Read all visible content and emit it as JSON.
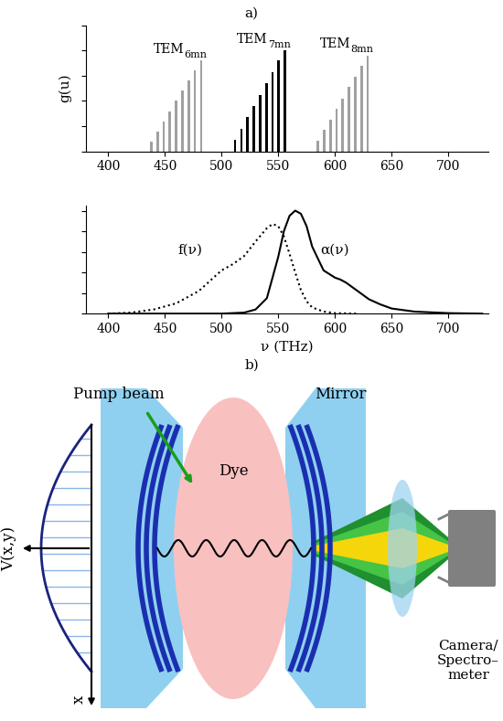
{
  "panels": [
    "a)",
    "b)"
  ],
  "chart_data": [
    {
      "type": "bar",
      "y_label": "g(u)",
      "xlim": [
        380,
        735
      ],
      "xticks": [
        400,
        450,
        500,
        550,
        600,
        650,
        700
      ],
      "ylim": [
        0,
        1.0
      ],
      "yticks": [
        0,
        0.2,
        0.4,
        0.6,
        0.8,
        1.0
      ],
      "tick_labels": "x",
      "series": [
        {
          "annotation": {
            "text": "TEM",
            "subscript": "6mn"
          },
          "color": "#a0a0a0",
          "x": [
            438,
            443.5,
            449,
            454.5,
            460,
            465.5,
            471,
            476.5,
            482
          ],
          "values": [
            0.08,
            0.16,
            0.24,
            0.32,
            0.4,
            0.48,
            0.56,
            0.64,
            0.72
          ]
        },
        {
          "annotation": {
            "text": "TEM",
            "subscript": "7mn"
          },
          "color": "#000000",
          "x": [
            512,
            517.5,
            523,
            528.5,
            534,
            539.5,
            545,
            550.5,
            556
          ],
          "values": [
            0.09,
            0.18,
            0.27,
            0.36,
            0.45,
            0.54,
            0.63,
            0.72,
            0.8
          ]
        },
        {
          "annotation": {
            "text": "TEM",
            "subscript": "8mn"
          },
          "color": "#a0a0a0",
          "x": [
            585,
            590.5,
            596,
            601.5,
            607,
            612.5,
            618,
            623.5,
            629
          ],
          "values": [
            0.085,
            0.17,
            0.25,
            0.34,
            0.42,
            0.51,
            0.59,
            0.68,
            0.76
          ]
        }
      ]
    },
    {
      "type": "line",
      "x_label": "ν (THz)",
      "xlim": [
        380,
        735
      ],
      "xticks": [
        400,
        450,
        500,
        550,
        600,
        650,
        700
      ],
      "ylim": [
        0,
        1.05
      ],
      "yticks": [
        0,
        0.2,
        0.4,
        0.6,
        0.8,
        1.0
      ],
      "tick_labels": "x",
      "series": [
        {
          "name": "f(ν)",
          "color": "#000000",
          "line_style": "dotted",
          "x": [
            400,
            420,
            440,
            460,
            480,
            490,
            500,
            510,
            520,
            530,
            540,
            545,
            550,
            555,
            560,
            565,
            570,
            575,
            580,
            590,
            600,
            620
          ],
          "values": [
            0.0,
            0.01,
            0.04,
            0.1,
            0.22,
            0.32,
            0.42,
            0.48,
            0.56,
            0.7,
            0.83,
            0.87,
            0.85,
            0.75,
            0.58,
            0.4,
            0.23,
            0.12,
            0.06,
            0.02,
            0.005,
            0.0
          ]
        },
        {
          "name": "α(ν)",
          "color": "#000000",
          "line_style": "solid",
          "x": [
            400,
            500,
            520,
            530,
            540,
            550,
            555,
            560,
            565,
            570,
            575,
            580,
            590,
            600,
            605,
            610,
            620,
            630,
            640,
            650,
            670,
            700,
            730
          ],
          "values": [
            0.0,
            0.0,
            0.01,
            0.04,
            0.15,
            0.55,
            0.8,
            0.95,
            1.0,
            0.97,
            0.85,
            0.65,
            0.42,
            0.35,
            0.33,
            0.3,
            0.22,
            0.14,
            0.09,
            0.05,
            0.02,
            0.005,
            0.0
          ]
        }
      ]
    }
  ],
  "diagram": {
    "pump_label": "Pump beam",
    "dye_label": "Dye",
    "mirror_label": "Mirror",
    "potential_label": "V(x,y)",
    "axis_label": "x",
    "detector_label_lines": [
      "Camera/",
      "Spectro–",
      "meter"
    ]
  }
}
